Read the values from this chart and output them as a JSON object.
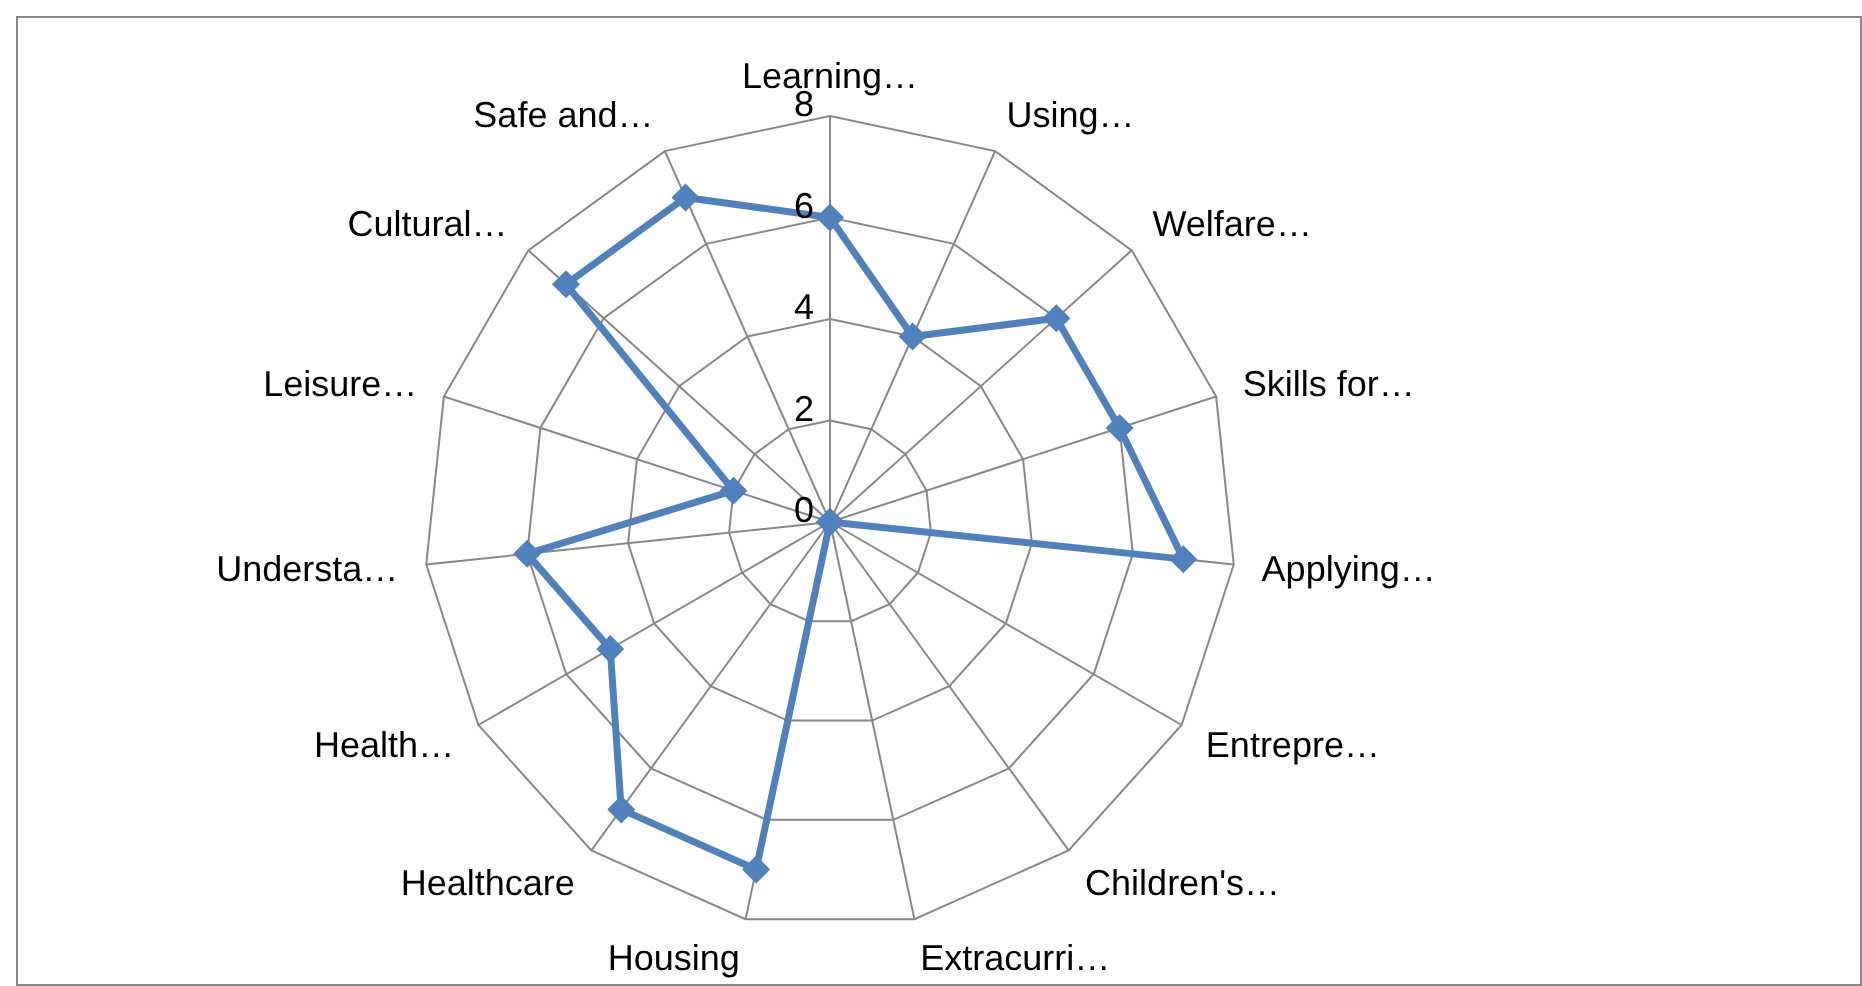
{
  "chart_data": {
    "type": "radar",
    "categories": [
      "Learning…",
      "Using…",
      "Welfare…",
      "Skills for…",
      "Applying…",
      "Entrepre…",
      "Children's…",
      "Extracurri…",
      "Housing",
      "Healthcare",
      "Health…",
      "Understa…",
      "Leisure…",
      "Cultural…",
      "Safe and…"
    ],
    "series": [
      {
        "color": "#4f81bd",
        "values": [
          6,
          4,
          6,
          6,
          7,
          0,
          0,
          0,
          7,
          7,
          5,
          6,
          2,
          7,
          7
        ]
      }
    ],
    "ylim": [
      0,
      8
    ],
    "yticks": [
      0,
      2,
      4,
      6,
      8
    ],
    "grid": true,
    "legend": false,
    "marker": "diamond",
    "line_style": "solid"
  }
}
